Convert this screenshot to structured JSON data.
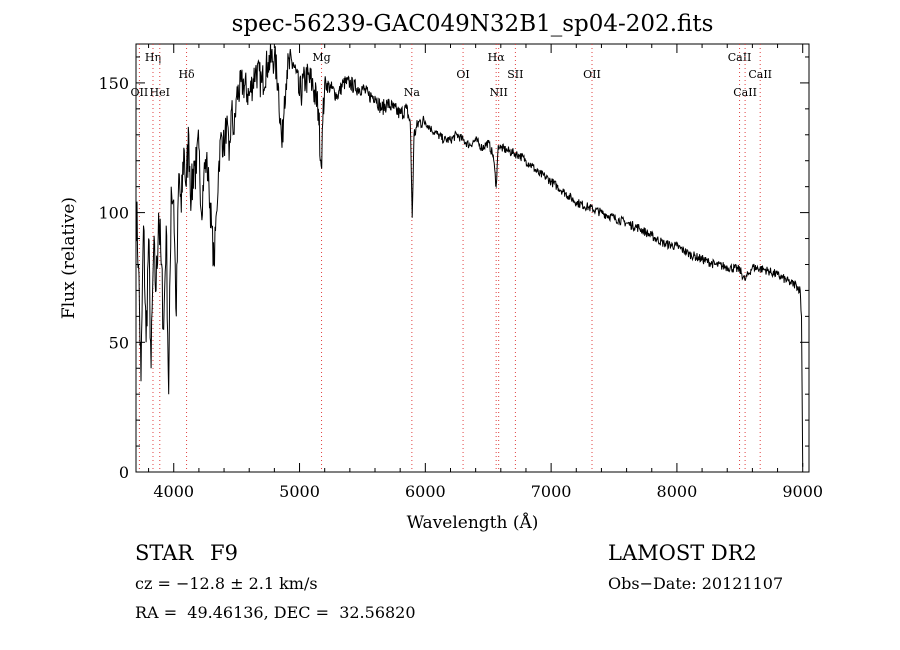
{
  "chart_data": {
    "type": "line",
    "title": "spec-56239-GAC049N32B1_sp04-202.fits",
    "xlabel": "Wavelength (Å)",
    "ylabel": "Flux (relative)",
    "xlim": [
      3700,
      9050
    ],
    "ylim": [
      0,
      165
    ],
    "x_ticks": [
      4000,
      5000,
      6000,
      7000,
      8000,
      9000
    ],
    "x_tick_labels": [
      "4000",
      "5000",
      "6000",
      "7000",
      "8000",
      "9000"
    ],
    "y_ticks": [
      0,
      50,
      100,
      150
    ],
    "y_tick_labels": [
      "0",
      "50",
      "100",
      "150"
    ],
    "grid": false,
    "series": [
      {
        "x": [
          3700,
          3720,
          3740,
          3760,
          3780,
          3800,
          3820,
          3840,
          3860,
          3880,
          3900,
          3920,
          3940,
          3960,
          3980,
          4000,
          4020,
          4040,
          4060,
          4080,
          4100,
          4120,
          4140,
          4160,
          4180,
          4200,
          4220,
          4240,
          4260,
          4280,
          4300,
          4320,
          4340,
          4360,
          4380,
          4400,
          4420,
          4440,
          4460,
          4480,
          4500,
          4550,
          4600,
          4650,
          4700,
          4750,
          4800,
          4830,
          4861,
          4880,
          4900,
          4950,
          5000,
          5050,
          5100,
          5150,
          5172,
          5185,
          5200,
          5250,
          5300,
          5350,
          5400,
          5450,
          5500,
          5550,
          5600,
          5650,
          5700,
          5750,
          5800,
          5850,
          5880,
          5890,
          5896,
          5910,
          5950,
          6000,
          6050,
          6100,
          6150,
          6200,
          6250,
          6300,
          6350,
          6400,
          6450,
          6500,
          6540,
          6563,
          6580,
          6600,
          6650,
          6700,
          6750,
          6800,
          6850,
          6900,
          6950,
          7000,
          7100,
          7200,
          7300,
          7400,
          7500,
          7600,
          7700,
          7800,
          7900,
          8000,
          8100,
          8200,
          8300,
          8400,
          8500,
          8540,
          8600,
          8700,
          8800,
          8900,
          8950,
          8980,
          8990,
          9000
        ],
        "y": [
          105,
          80,
          35,
          95,
          50,
          90,
          40,
          85,
          70,
          100,
          80,
          55,
          95,
          30,
          110,
          105,
          60,
          115,
          100,
          125,
          110,
          130,
          105,
          120,
          115,
          125,
          100,
          115,
          120,
          110,
          95,
          80,
          100,
          120,
          130,
          125,
          135,
          120,
          140,
          130,
          145,
          150,
          145,
          155,
          150,
          158,
          160,
          150,
          125,
          145,
          155,
          158,
          145,
          152,
          150,
          140,
          118,
          135,
          150,
          148,
          145,
          150,
          150,
          148,
          148,
          145,
          145,
          140,
          142,
          140,
          138,
          140,
          135,
          112,
          98,
          130,
          135,
          135,
          132,
          130,
          128,
          128,
          130,
          128,
          126,
          128,
          125,
          127,
          122,
          110,
          126,
          125,
          124,
          123,
          122,
          120,
          118,
          115,
          114,
          112,
          108,
          104,
          102,
          100,
          98,
          96,
          94,
          91,
          88,
          87,
          84,
          82,
          80,
          79,
          78,
          74,
          79,
          78,
          76,
          73,
          72,
          70,
          60,
          2
        ]
      }
    ],
    "line_markers": [
      {
        "label": "Hη",
        "x": 3835,
        "row": 0
      },
      {
        "label": "OII",
        "x": 3727,
        "row": 2
      },
      {
        "label": "HeI",
        "x": 3889,
        "row": 2
      },
      {
        "label": "Hδ",
        "x": 4102,
        "row": 1
      },
      {
        "label": "Mg",
        "x": 5175,
        "row": 0
      },
      {
        "label": "Na",
        "x": 5893,
        "row": 2
      },
      {
        "label": "OI",
        "x": 6300,
        "row": 1
      },
      {
        "label": "Hα",
        "x": 6563,
        "row": 0
      },
      {
        "label": "NII",
        "x": 6583,
        "row": 2
      },
      {
        "label": "SII",
        "x": 6716,
        "row": 1
      },
      {
        "label": "OII",
        "x": 7325,
        "row": 1
      },
      {
        "label": "CaII",
        "x": 8498,
        "row": 0
      },
      {
        "label": "CaII",
        "x": 8542,
        "row": 2
      },
      {
        "label": "CaII",
        "x": 8662,
        "row": 1
      }
    ]
  },
  "info": {
    "object_class": "STAR",
    "subclass": "F9",
    "survey": "LAMOST DR2",
    "redshift": "cz = −12.8 ± 2.1 km/s",
    "obs_date": "Obs−Date: 20121107",
    "coords": "RA =  49.46136, DEC =  32.56820"
  }
}
